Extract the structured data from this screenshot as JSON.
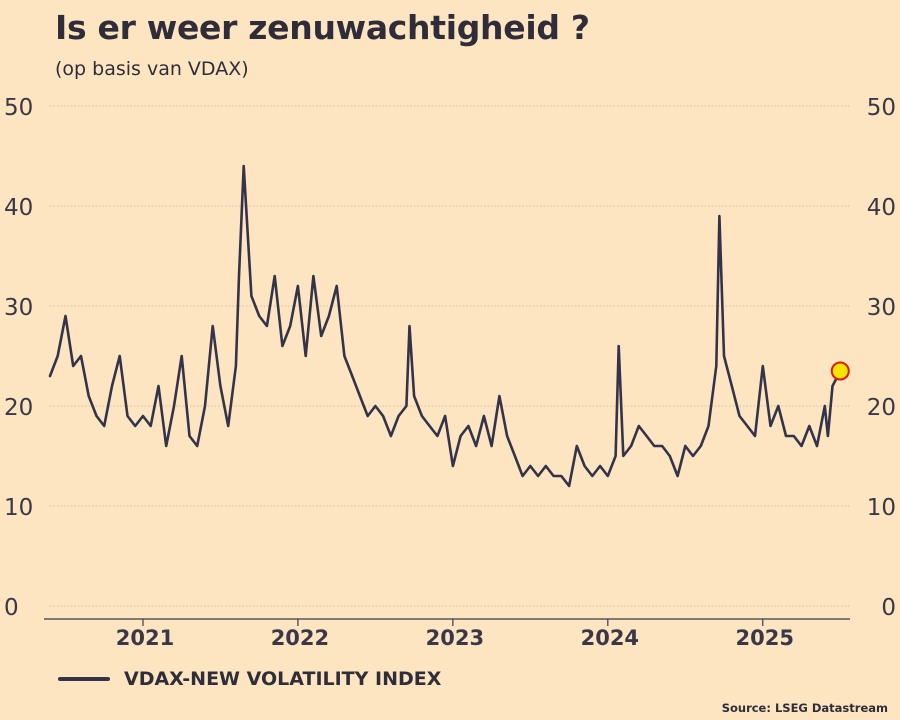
{
  "chart_data": {
    "type": "line",
    "title": "Is er weer zenuwachtigheid ?",
    "subtitle": "(op basis van VDAX)",
    "source": "Source: LSEG Datastream",
    "ylim": [
      0,
      50
    ],
    "yticks": [
      "0",
      "10",
      "20",
      "30",
      "40",
      "50"
    ],
    "xlim": [
      2020.4,
      2025.55
    ],
    "xticks": [
      {
        "label": "2021",
        "value": 2021.0
      },
      {
        "label": "2022",
        "value": 2022.0
      },
      {
        "label": "2023",
        "value": 2023.0
      },
      {
        "label": "2024",
        "value": 2024.0
      },
      {
        "label": "2025",
        "value": 2025.0
      }
    ],
    "legend_position": "bottom-left",
    "grid": true,
    "colors": {
      "line": "#33334a",
      "marker_fill": "#f2e600",
      "marker_stroke": "#e0191c",
      "grid": "#d4c3a8",
      "axis": "#3a3848"
    },
    "series": [
      {
        "name": "VDAX-NEW VOLATILITY INDEX",
        "x": [
          2020.4,
          2020.45,
          2020.5,
          2020.55,
          2020.6,
          2020.65,
          2020.7,
          2020.75,
          2020.8,
          2020.85,
          2020.9,
          2020.95,
          2021.0,
          2021.05,
          2021.1,
          2021.15,
          2021.2,
          2021.25,
          2021.3,
          2021.35,
          2021.4,
          2021.45,
          2021.5,
          2021.55,
          2021.6,
          2021.62,
          2021.65,
          2021.7,
          2021.75,
          2021.8,
          2021.85,
          2021.9,
          2021.95,
          2022.0,
          2022.05,
          2022.1,
          2022.15,
          2022.2,
          2022.25,
          2022.3,
          2022.35,
          2022.4,
          2022.45,
          2022.5,
          2022.55,
          2022.6,
          2022.65,
          2022.7,
          2022.72,
          2022.75,
          2022.8,
          2022.85,
          2022.9,
          2022.95,
          2023.0,
          2023.05,
          2023.1,
          2023.15,
          2023.2,
          2023.25,
          2023.3,
          2023.35,
          2023.4,
          2023.45,
          2023.5,
          2023.55,
          2023.6,
          2023.65,
          2023.7,
          2023.75,
          2023.8,
          2023.85,
          2023.9,
          2023.95,
          2024.0,
          2024.05,
          2024.07,
          2024.1,
          2024.15,
          2024.2,
          2024.25,
          2024.3,
          2024.35,
          2024.4,
          2024.45,
          2024.5,
          2024.55,
          2024.6,
          2024.65,
          2024.7,
          2024.72,
          2024.75,
          2024.8,
          2024.85,
          2024.9,
          2024.95,
          2025.0,
          2025.05,
          2025.1,
          2025.15,
          2025.2,
          2025.25,
          2025.3,
          2025.35,
          2025.4,
          2025.42,
          2025.45,
          2025.5
        ],
        "values": [
          23,
          25,
          29,
          24,
          25,
          21,
          19,
          18,
          22,
          25,
          19,
          18,
          19,
          18,
          22,
          16,
          20,
          25,
          17,
          16,
          20,
          28,
          22,
          18,
          24,
          33,
          44,
          31,
          29,
          28,
          33,
          26,
          28,
          32,
          25,
          33,
          27,
          29,
          32,
          25,
          23,
          21,
          19,
          20,
          19,
          17,
          19,
          20,
          28,
          21,
          19,
          18,
          17,
          19,
          14,
          17,
          18,
          16,
          19,
          16,
          21,
          17,
          15,
          13,
          14,
          13,
          14,
          13,
          13,
          12,
          16,
          14,
          13,
          14,
          13,
          15,
          26,
          15,
          16,
          18,
          17,
          16,
          16,
          15,
          13,
          16,
          15,
          16,
          18,
          24,
          39,
          25,
          22,
          19,
          18,
          17,
          24,
          18,
          20,
          17,
          17,
          16,
          18,
          16,
          20,
          17,
          22,
          23.5
        ]
      }
    ],
    "highlight": {
      "x": 2025.5,
      "value": 23.5
    }
  }
}
